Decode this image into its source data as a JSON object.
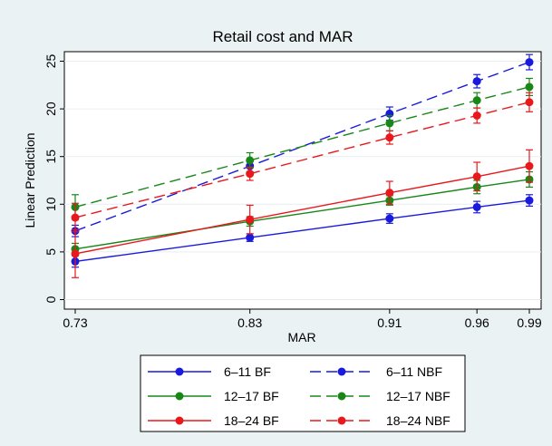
{
  "chart_data": {
    "type": "line",
    "title": "Retail cost and MAR",
    "xlabel": "MAR",
    "ylabel": "Linear Prediction",
    "x": [
      0.73,
      0.83,
      0.91,
      0.96,
      0.99
    ],
    "x_tick_labels": [
      "0.73",
      "0.83",
      "0.91",
      "0.96",
      "0.99"
    ],
    "ylim": [
      -1,
      26
    ],
    "y_ticks": [
      0,
      5,
      10,
      15,
      20,
      25
    ],
    "y_tick_labels": [
      "0",
      "5",
      "10",
      "15",
      "20",
      "25"
    ],
    "grid": true,
    "legend_placement": "bottom",
    "series": [
      {
        "name": "6–11 BF",
        "color": "#1a1adc",
        "dash": false,
        "values": [
          4.0,
          6.5,
          8.5,
          9.7,
          10.4
        ],
        "err": [
          0.6,
          0.4,
          0.5,
          0.6,
          0.6
        ]
      },
      {
        "name": "6–11 NBF",
        "color": "#1a1adc",
        "dash": true,
        "values": [
          7.2,
          14.0,
          19.5,
          22.9,
          24.9
        ],
        "err": [
          0.6,
          0.6,
          0.7,
          0.7,
          0.8
        ]
      },
      {
        "name": "12–17 BF",
        "color": "#188718",
        "dash": false,
        "values": [
          5.3,
          8.2,
          10.4,
          11.8,
          12.6
        ],
        "err": [
          0.6,
          0.5,
          0.5,
          0.7,
          0.8
        ]
      },
      {
        "name": "12–17 NBF",
        "color": "#188718",
        "dash": true,
        "values": [
          9.7,
          14.6,
          18.5,
          20.9,
          22.3
        ],
        "err": [
          1.3,
          0.8,
          0.8,
          0.8,
          0.9
        ]
      },
      {
        "name": "18–24 BF",
        "color": "#e8181c",
        "dash": false,
        "values": [
          4.8,
          8.4,
          11.2,
          12.9,
          14.0
        ],
        "err": [
          2.5,
          1.5,
          1.2,
          1.5,
          1.7
        ]
      },
      {
        "name": "18–24 NBF",
        "color": "#e8181c",
        "dash": true,
        "values": [
          8.6,
          13.2,
          17.0,
          19.3,
          20.7
        ],
        "err": [
          1.5,
          0.7,
          0.7,
          0.8,
          1.0
        ]
      }
    ]
  }
}
